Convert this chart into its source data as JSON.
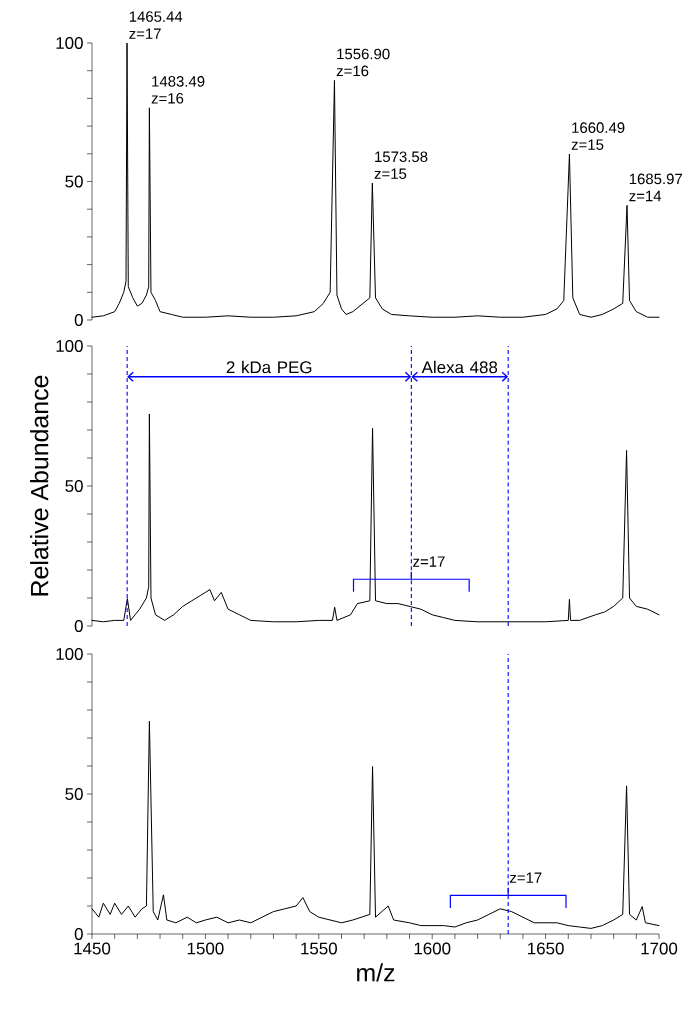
{
  "chart_data": [
    {
      "type": "line",
      "color": "#000000",
      "xlim": [
        1450,
        1700
      ],
      "ylim": [
        0,
        100
      ],
      "tick_labels": "y",
      "yticks": [
        0,
        {
          "value": 10,
          "label": null
        },
        {
          "value": 20,
          "label": null
        },
        {
          "value": 30,
          "label": null
        },
        {
          "value": 40,
          "label": null
        },
        50,
        {
          "value": 60,
          "label": null
        },
        {
          "value": 70,
          "label": null
        },
        {
          "value": 80,
          "label": null
        },
        {
          "value": 90,
          "label": null
        },
        100
      ],
      "x": [
        1450,
        1455,
        1460,
        1462,
        1464,
        1465,
        1465.44,
        1466,
        1468,
        1470,
        1472,
        1474,
        1475,
        1475.3,
        1476,
        1478,
        1480,
        1485,
        1490,
        1500,
        1510,
        1520,
        1530,
        1540,
        1548,
        1552,
        1555,
        1556.9,
        1558,
        1560,
        1562,
        1565,
        1568,
        1572.5,
        1573.6,
        1575,
        1578,
        1582,
        1590,
        1600,
        1610,
        1620,
        1630,
        1640,
        1650,
        1655,
        1658,
        1660.5,
        1662,
        1665,
        1670,
        1675,
        1680,
        1684,
        1685.9,
        1687,
        1690,
        1695,
        1700
      ],
      "values": [
        1,
        1.5,
        3,
        6,
        10,
        14,
        100,
        12,
        8,
        5,
        6,
        9,
        12,
        76.6,
        10,
        7,
        3,
        2,
        1,
        1,
        1.5,
        1,
        1,
        1.5,
        3,
        6,
        10,
        86.5,
        9,
        4,
        2,
        3,
        5,
        8,
        49.4,
        8,
        4,
        2,
        1.5,
        1,
        1,
        1.5,
        1,
        1,
        2,
        4,
        7,
        59.9,
        8,
        2,
        1,
        2,
        4,
        6,
        41.4,
        7,
        3,
        1,
        1
      ],
      "annotations": [
        {
          "text": "1465.44",
          "x": 1465.44,
          "y": 100
        },
        {
          "text": "z=17",
          "x": 1465.44,
          "y": 100
        },
        {
          "text": "1483.49",
          "x": 1475.3,
          "y": 76.6
        },
        {
          "text": "z=16",
          "x": 1475.3,
          "y": 76.6
        },
        {
          "text": "1556.90",
          "x": 1556.9,
          "y": 86.5
        },
        {
          "text": "z=16",
          "x": 1556.9,
          "y": 86.5
        },
        {
          "text": "1573.58",
          "x": 1573.6,
          "y": 49.4
        },
        {
          "text": "z=15",
          "x": 1573.6,
          "y": 49.4
        },
        {
          "text": "1660.49",
          "x": 1660.5,
          "y": 59.9
        },
        {
          "text": "z=15",
          "x": 1660.5,
          "y": 59.9
        },
        {
          "text": "1685.97",
          "x": 1685.9,
          "y": 41.4
        },
        {
          "text": "z=14",
          "x": 1685.9,
          "y": 41.4
        }
      ]
    },
    {
      "type": "line",
      "color": "#000000",
      "xlim": [
        1450,
        1700
      ],
      "ylim": [
        0,
        100
      ],
      "tick_labels": "y",
      "ylabel": "Relative Abundance",
      "yticks": [
        0,
        {
          "value": 10,
          "label": null
        },
        {
          "value": 20,
          "label": null
        },
        {
          "value": 30,
          "label": null
        },
        {
          "value": 40,
          "label": null
        },
        50,
        {
          "value": 60,
          "label": null
        },
        {
          "value": 70,
          "label": null
        },
        {
          "value": 80,
          "label": null
        },
        {
          "value": 90,
          "label": null
        },
        100
      ],
      "x": [
        1450,
        1455,
        1460,
        1464,
        1465.6,
        1467,
        1469,
        1471,
        1474,
        1475,
        1475.3,
        1476,
        1478,
        1482,
        1486,
        1490,
        1494,
        1498,
        1502,
        1504,
        1507,
        1510,
        1515,
        1520,
        1530,
        1540,
        1550,
        1556,
        1557,
        1558,
        1564,
        1567,
        1572.5,
        1573.7,
        1575,
        1580,
        1585,
        1590,
        1595,
        1600,
        1605,
        1610,
        1620,
        1630,
        1640,
        1650,
        1660,
        1660.5,
        1661,
        1665,
        1672,
        1676,
        1680,
        1684,
        1685.7,
        1687,
        1690,
        1695,
        1700
      ],
      "values": [
        2,
        1.5,
        2,
        2,
        9.8,
        2,
        4,
        6,
        10,
        14,
        75.7,
        10,
        4,
        2,
        4,
        7,
        9,
        11,
        13,
        9,
        12,
        6,
        4,
        2,
        1.5,
        1.5,
        2,
        2,
        6.7,
        2,
        4,
        8,
        9,
        70.6,
        9,
        8,
        8,
        7,
        6,
        4,
        3,
        2,
        1.5,
        1.5,
        1.5,
        1.5,
        2,
        9.5,
        2,
        2,
        4,
        5,
        7,
        10,
        62.7,
        10,
        7,
        6,
        4
      ],
      "ref_lines": [
        {
          "axis": "x",
          "value": 1465.5,
          "color": "#0000ff",
          "line_style": "dashed"
        },
        {
          "axis": "x",
          "value": 1590.8,
          "color": "#0000ff",
          "line_style": "dashed"
        },
        {
          "axis": "x",
          "value": 1633.5,
          "color": "#0000ff",
          "line_style": "dashed"
        }
      ],
      "annotations": [
        "2 kDa PEG",
        "Alexa 488",
        {
          "text": "z=17",
          "x": 1590.8,
          "y": 16.7
        }
      ]
    },
    {
      "type": "line",
      "color": "#000000",
      "xlim": [
        1450,
        1700
      ],
      "ylim": [
        0,
        100
      ],
      "xlabel": "m/z",
      "yticks": [
        0,
        {
          "value": 10,
          "label": null
        },
        {
          "value": 20,
          "label": null
        },
        {
          "value": 30,
          "label": null
        },
        {
          "value": 40,
          "label": null
        },
        50,
        {
          "value": 60,
          "label": null
        },
        {
          "value": 70,
          "label": null
        },
        {
          "value": 80,
          "label": null
        },
        {
          "value": 90,
          "label": null
        },
        100
      ],
      "xticks": [
        1450,
        {
          "value": 1460,
          "label": null
        },
        {
          "value": 1470,
          "label": null
        },
        {
          "value": 1480,
          "label": null
        },
        {
          "value": 1490,
          "label": null
        },
        1500,
        {
          "value": 1510,
          "label": null
        },
        {
          "value": 1520,
          "label": null
        },
        {
          "value": 1530,
          "label": null
        },
        {
          "value": 1540,
          "label": null
        },
        1550,
        {
          "value": 1560,
          "label": null
        },
        {
          "value": 1570,
          "label": null
        },
        {
          "value": 1580,
          "label": null
        },
        {
          "value": 1590,
          "label": null
        },
        1600,
        {
          "value": 1610,
          "label": null
        },
        {
          "value": 1620,
          "label": null
        },
        {
          "value": 1630,
          "label": null
        },
        {
          "value": 1640,
          "label": null
        },
        1650,
        {
          "value": 1660,
          "label": null
        },
        {
          "value": 1670,
          "label": null
        },
        {
          "value": 1680,
          "label": null
        },
        {
          "value": 1690,
          "label": null
        },
        1700
      ],
      "x": [
        1450,
        1453,
        1455,
        1458,
        1460,
        1463,
        1466,
        1469,
        1472,
        1474,
        1475.3,
        1477,
        1479,
        1481.5,
        1483,
        1487,
        1492,
        1496,
        1500,
        1505,
        1510,
        1515,
        1520,
        1525,
        1530,
        1535,
        1540,
        1543,
        1546,
        1550,
        1555,
        1560,
        1565,
        1572.5,
        1573.7,
        1575,
        1580.6,
        1583,
        1590,
        1595,
        1600,
        1605,
        1610,
        1615,
        1620,
        1625,
        1630,
        1635,
        1640,
        1645,
        1650,
        1655,
        1660,
        1665,
        1670,
        1675,
        1680,
        1684,
        1685.7,
        1687,
        1690,
        1692.6,
        1694,
        1700
      ],
      "values": [
        9,
        6,
        11,
        7,
        11,
        7,
        10,
        6,
        9,
        10,
        76,
        8,
        5,
        14,
        5,
        4,
        6,
        4,
        5,
        6,
        4,
        5,
        4,
        6,
        8,
        9,
        10,
        13,
        8,
        6,
        5,
        4,
        5,
        7,
        59.8,
        6,
        10,
        5,
        4,
        3,
        3,
        3,
        2.5,
        4,
        5,
        7,
        9,
        8,
        6,
        4,
        4,
        4,
        3,
        2.5,
        2,
        3,
        5,
        7,
        52.9,
        7,
        5,
        9.8,
        4,
        3
      ],
      "ref_lines": [
        {
          "axis": "x",
          "value": 1633.5,
          "color": "#0000ff",
          "line_style": "dashed"
        }
      ],
      "annotations": [
        {
          "text": "z=17",
          "x": 1633.5,
          "y": 13.8
        }
      ]
    }
  ]
}
